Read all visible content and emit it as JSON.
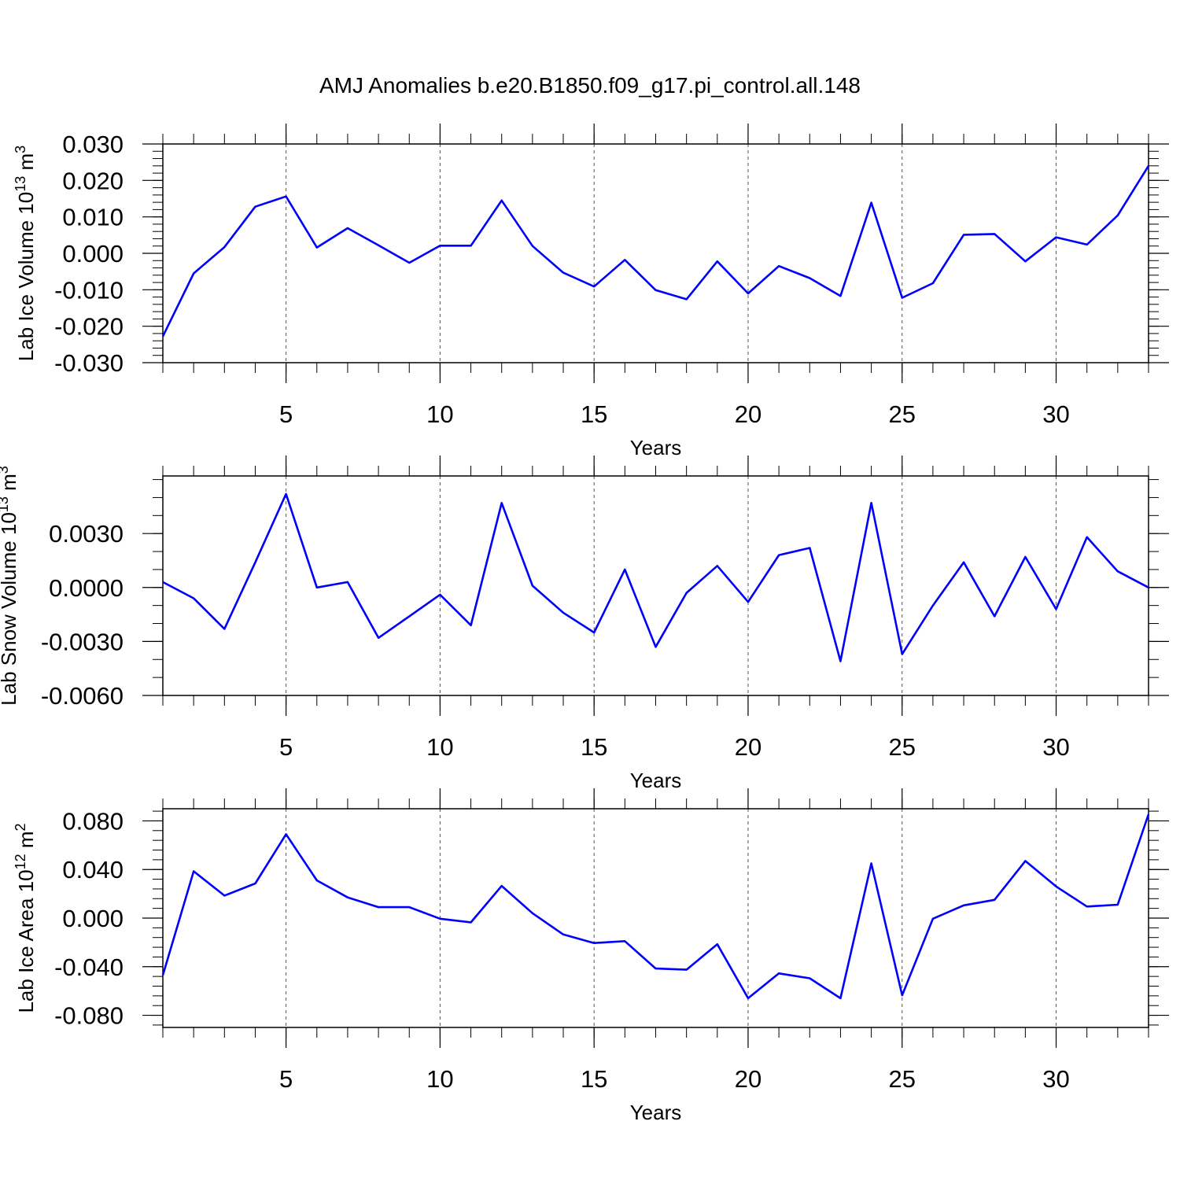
{
  "title": "AMJ Anomalies b.e20.B1850.f09_g17.pi_control.all.148",
  "chart_data": [
    {
      "type": "line",
      "ylabel": "Lab Ice Volume 10",
      "ylabel_sup": "13",
      "ylabel_unit": " m",
      "ylabel_unit_sup": "3",
      "xlabel": "Years",
      "xlim": [
        1,
        33
      ],
      "ylim": [
        -0.03,
        0.03
      ],
      "yticks": [
        -0.03,
        -0.02,
        -0.01,
        0.0,
        0.01,
        0.02,
        0.03
      ],
      "yticklabels": [
        "-0.030",
        "-0.020",
        "-0.010",
        "0.000",
        "0.010",
        "0.020",
        "0.030"
      ],
      "yminor": 0.002,
      "xticks": [
        5,
        10,
        15,
        20,
        25,
        30
      ],
      "xticklabels": [
        "5",
        "10",
        "15",
        "20",
        "25",
        "30"
      ],
      "grid_x": [
        5,
        10,
        15,
        20,
        25,
        30
      ],
      "series": [
        {
          "color": "#0000ff",
          "x": [
            1,
            2,
            3,
            4,
            5,
            6,
            7,
            8,
            9,
            10,
            11,
            12,
            13,
            14,
            15,
            16,
            17,
            18,
            19,
            20,
            21,
            22,
            23,
            24,
            25,
            26,
            27,
            28,
            29,
            30,
            31,
            32,
            33
          ],
          "values": [
            -0.0228,
            -0.0055,
            0.0017,
            0.0128,
            0.0156,
            0.0016,
            0.0069,
            0.0022,
            -0.0026,
            0.0021,
            0.0021,
            0.0145,
            0.002,
            -0.0053,
            -0.0091,
            -0.0018,
            -0.0101,
            -0.0126,
            -0.0022,
            -0.011,
            -0.0035,
            -0.0068,
            -0.0117,
            0.0139,
            -0.0122,
            -0.0082,
            0.0051,
            0.0053,
            -0.0022,
            0.0044,
            0.0024,
            0.0104,
            0.024
          ]
        }
      ]
    },
    {
      "type": "line",
      "ylabel": "Lab Snow Volume 10",
      "ylabel_sup": "13",
      "ylabel_unit": " m",
      "ylabel_unit_sup": "3",
      "xlabel": "Years",
      "xlim": [
        1,
        33
      ],
      "ylim": [
        -0.006,
        0.0062
      ],
      "yticks": [
        -0.006,
        -0.003,
        0.0,
        0.003
      ],
      "yticklabels": [
        "-0.0060",
        "-0.0030",
        "0.0000",
        "0.0030"
      ],
      "yminor": 0.001,
      "xticks": [
        5,
        10,
        15,
        20,
        25,
        30
      ],
      "xticklabels": [
        "5",
        "10",
        "15",
        "20",
        "25",
        "30"
      ],
      "grid_x": [
        5,
        10,
        15,
        20,
        25,
        30
      ],
      "series": [
        {
          "color": "#0000ff",
          "x": [
            1,
            2,
            3,
            4,
            5,
            6,
            7,
            8,
            9,
            10,
            11,
            12,
            13,
            14,
            15,
            16,
            17,
            18,
            19,
            20,
            21,
            22,
            23,
            24,
            25,
            26,
            27,
            28,
            29,
            30,
            31,
            32,
            33
          ],
          "values": [
            0.0003,
            -0.0006,
            -0.0023,
            0.0014,
            0.0052,
            0.0,
            0.0003,
            -0.0028,
            -0.0016,
            -0.0004,
            -0.0021,
            0.0047,
            0.0001,
            -0.0014,
            -0.0025,
            0.001,
            -0.0033,
            -0.0003,
            0.0012,
            -0.0008,
            0.0018,
            0.0022,
            -0.0041,
            0.0047,
            -0.0037,
            -0.001,
            0.0014,
            -0.0016,
            0.0017,
            -0.0012,
            0.0028,
            0.0009,
            0.0
          ]
        }
      ]
    },
    {
      "type": "line",
      "ylabel": "Lab Ice Area 10",
      "ylabel_sup": "12",
      "ylabel_unit": " m",
      "ylabel_unit_sup": "2",
      "xlabel": "Years",
      "xlim": [
        1,
        33
      ],
      "ylim": [
        -0.09,
        0.09
      ],
      "yticks": [
        -0.08,
        -0.04,
        0.0,
        0.04,
        0.08
      ],
      "yticklabels": [
        "-0.080",
        "-0.040",
        "0.000",
        "0.040",
        "0.080"
      ],
      "yminor": 0.008,
      "xticks": [
        5,
        10,
        15,
        20,
        25,
        30
      ],
      "xticklabels": [
        "5",
        "10",
        "15",
        "20",
        "25",
        "30"
      ],
      "grid_x": [
        5,
        10,
        15,
        20,
        25,
        30
      ],
      "series": [
        {
          "color": "#0000ff",
          "x": [
            1,
            2,
            3,
            4,
            5,
            6,
            7,
            8,
            9,
            10,
            11,
            12,
            13,
            14,
            15,
            16,
            17,
            18,
            19,
            20,
            21,
            22,
            23,
            24,
            25,
            26,
            27,
            28,
            29,
            30,
            31,
            32,
            33
          ],
          "values": [
            -0.047,
            0.0385,
            0.0185,
            0.0285,
            0.069,
            0.031,
            0.017,
            0.009,
            0.009,
            -0.0005,
            -0.0035,
            0.0265,
            0.004,
            -0.0135,
            -0.0205,
            -0.019,
            -0.0415,
            -0.0425,
            -0.0215,
            -0.066,
            -0.0455,
            -0.0495,
            -0.066,
            0.045,
            -0.0635,
            -0.0005,
            0.0105,
            0.015,
            0.047,
            0.026,
            0.0095,
            0.011,
            0.0855
          ]
        }
      ]
    }
  ]
}
